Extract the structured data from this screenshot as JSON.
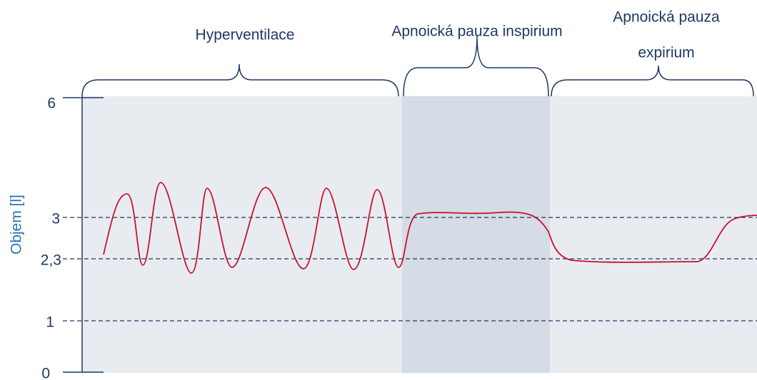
{
  "y_axis": {
    "label": "Objem [l]",
    "ticks": [
      "0",
      "1",
      "2,3",
      "3",
      "6"
    ]
  },
  "sections": [
    {
      "lines": [
        "Hyperventilace"
      ]
    },
    {
      "lines": [
        "Apnoická pauza inspirium"
      ]
    },
    {
      "lines": [
        "Apnoická pauza",
        "expirium"
      ]
    }
  ]
}
